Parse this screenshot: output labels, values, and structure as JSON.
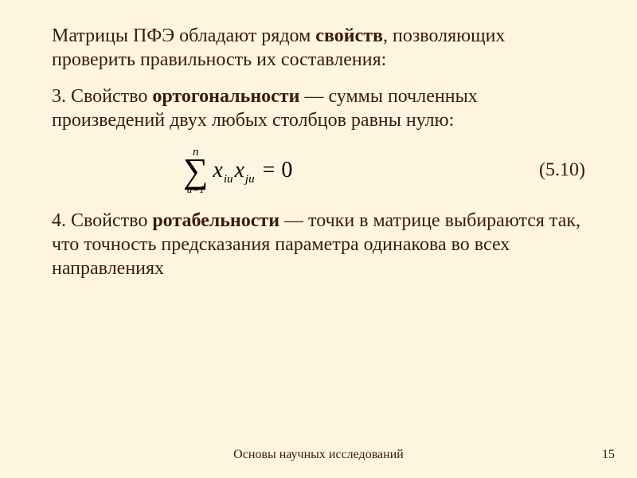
{
  "slide": {
    "background_color": "#fdf5e0",
    "text_color": "#3a1a0a",
    "font_family": "Georgia, Times New Roman, serif",
    "title_fontsize": 24,
    "body_fontsize": 24,
    "footer_fontsize": 16
  },
  "title": {
    "pre": "Матрицы ПФЭ обладают рядом ",
    "bold": "свойств",
    "post": ", позволяющих проверить правильность их составления:"
  },
  "para3": {
    "pre": "3. Свойство ",
    "bold": "ортогональности",
    "post": " — суммы почленных произведений двух любых столбцов равны нулю:"
  },
  "formula": {
    "sum_upper": "n",
    "sum_symbol": "∑",
    "sum_lower": "u=1",
    "x1": "x",
    "sub1": "iu",
    "x2": "x",
    "sub2": "ju",
    "eq": "=",
    "rhs": "0",
    "number": "(5.10)",
    "formula_color": "#000000",
    "formula_fontsize": 28
  },
  "para4": {
    "pre": "4. Свойство ",
    "bold": "ротабельности",
    "post": " — точки в матрице выбираются так, что точность предсказания параметра одинакова во всех направлениях"
  },
  "footer": {
    "text": "Основы научных исследований",
    "page": "15"
  }
}
